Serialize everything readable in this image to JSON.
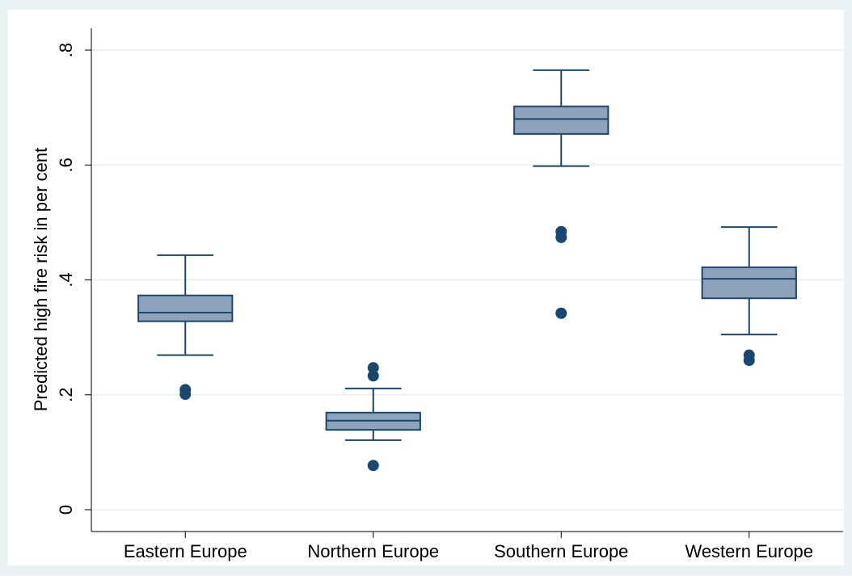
{
  "chart_data": {
    "type": "box",
    "y_label": "Predicted high fire risk in per cent",
    "categories": [
      "Eastern Europe",
      "Northern Europe",
      "Southern Europe",
      "Western Europe"
    ],
    "boxes": [
      {
        "whisker_low": 0.269,
        "q1": 0.328,
        "median": 0.343,
        "q3": 0.373,
        "whisker_high": 0.443,
        "outliers": [
          0.209,
          0.201
        ]
      },
      {
        "whisker_low": 0.121,
        "q1": 0.139,
        "median": 0.155,
        "q3": 0.169,
        "whisker_high": 0.211,
        "outliers": [
          0.247,
          0.233,
          0.077
        ]
      },
      {
        "whisker_low": 0.598,
        "q1": 0.654,
        "median": 0.68,
        "q3": 0.702,
        "whisker_high": 0.765,
        "outliers": [
          0.484,
          0.474,
          0.342
        ]
      },
      {
        "whisker_low": 0.305,
        "q1": 0.368,
        "median": 0.402,
        "q3": 0.422,
        "whisker_high": 0.492,
        "outliers": [
          0.269,
          0.26
        ]
      }
    ],
    "box_color": "#8ea3bb",
    "line_color": "#1a476f",
    "ylim": [
      -0.038,
      0.838
    ],
    "yticks": [
      0,
      {
        "value": 0.2,
        "label": ".2"
      },
      {
        "value": 0.4,
        "label": ".4"
      },
      {
        "value": 0.6,
        "label": ".6"
      },
      {
        "value": 0.8,
        "label": ".8"
      }
    ],
    "grid": true
  }
}
